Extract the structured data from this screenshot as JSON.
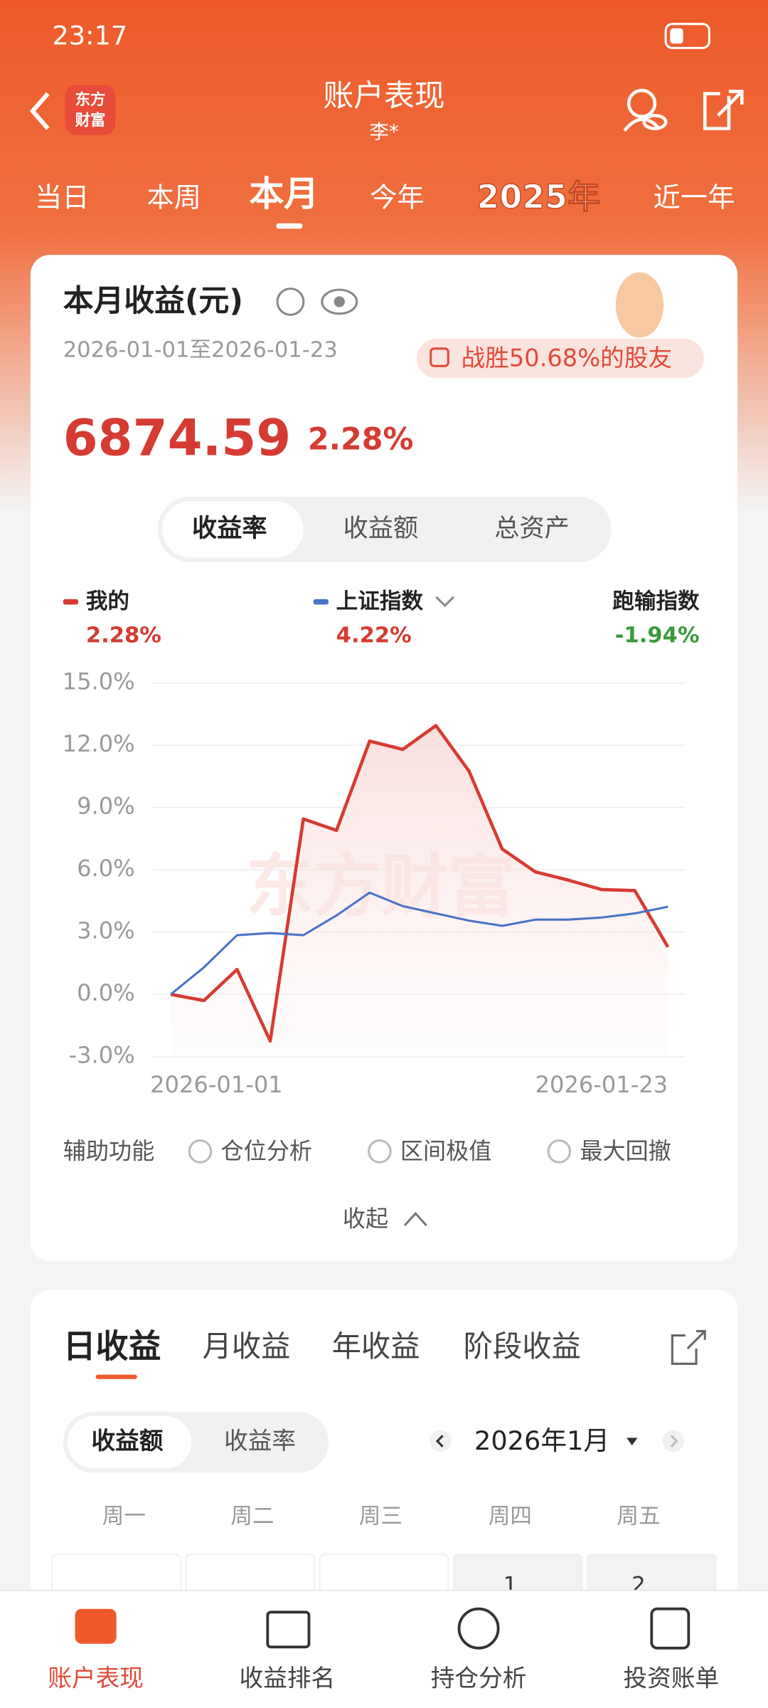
{
  "status_bar": {
    "time": "23:17"
  },
  "header": {
    "title": "账户表现",
    "subtitle": "李*",
    "logo": [
      "东方",
      "财富"
    ]
  },
  "period_tabs": [
    "当日",
    "本周",
    "本月",
    "今年",
    "2025年",
    "近一年"
  ],
  "summary_card": {
    "title": "本月收益(元)",
    "date_range": "2026-01-01至2026-01-23",
    "badge": "战胜50.68%的股友",
    "amount": "6874.59",
    "rate": "2.28%",
    "segments": [
      "收益率",
      "收益额",
      "总资产"
    ],
    "legend": [
      {
        "name": "我的",
        "value": "2.28%"
      },
      {
        "name": "上证指数",
        "value": "4.22%"
      },
      {
        "name": "跑输指数",
        "value": "-1.94%"
      }
    ],
    "watermark": "东方财富",
    "tools_label": "辅助功能",
    "tools": [
      "仓位分析",
      "区间极值",
      "最大回撤"
    ],
    "collapse": "收起"
  },
  "chart_data": {
    "type": "line",
    "categories": [
      "2026-01-01",
      null,
      null,
      null,
      null,
      null,
      null,
      null,
      null,
      null,
      null,
      null,
      null,
      null,
      null,
      "2026-01-23"
    ],
    "series": [
      {
        "name": "我的",
        "color": "#d63b32",
        "values": [
          0,
          -0.3,
          1.2,
          -2.25,
          8.45,
          7.9,
          12.2,
          11.8,
          12.95,
          10.75,
          7.0,
          5.9,
          5.5,
          5.05,
          5.0,
          2.28
        ]
      },
      {
        "name": "上证指数",
        "color": "#4a72c8",
        "values": [
          0,
          1.3,
          2.85,
          2.95,
          2.85,
          3.8,
          4.9,
          4.25,
          3.9,
          3.55,
          3.3,
          3.6,
          3.6,
          3.7,
          3.9,
          4.22
        ]
      }
    ],
    "ylim": [
      -3,
      15
    ],
    "yticks": [
      {
        "value": -3,
        "label": "-3.0%"
      },
      {
        "value": 0,
        "label": "0.0%"
      },
      {
        "value": 3,
        "label": "3.0%"
      },
      {
        "value": 6,
        "label": "6.0%"
      },
      {
        "value": 9,
        "label": "9.0%"
      },
      {
        "value": 12,
        "label": "12.0%"
      },
      {
        "value": 15,
        "label": "15.0%"
      }
    ],
    "grid": true
  },
  "daily_card": {
    "tabs": [
      "日收益",
      "月收益",
      "年收益",
      "阶段收益"
    ],
    "segments": [
      "收益额",
      "收益率"
    ],
    "month": "2026年1月",
    "weekdays": [
      "周一",
      "周二",
      "周三",
      "周四",
      "周五"
    ],
    "days": [
      "1",
      "2"
    ]
  },
  "bottom_nav": [
    "账户表现",
    "收益排名",
    "持仓分析",
    "投资账单"
  ]
}
